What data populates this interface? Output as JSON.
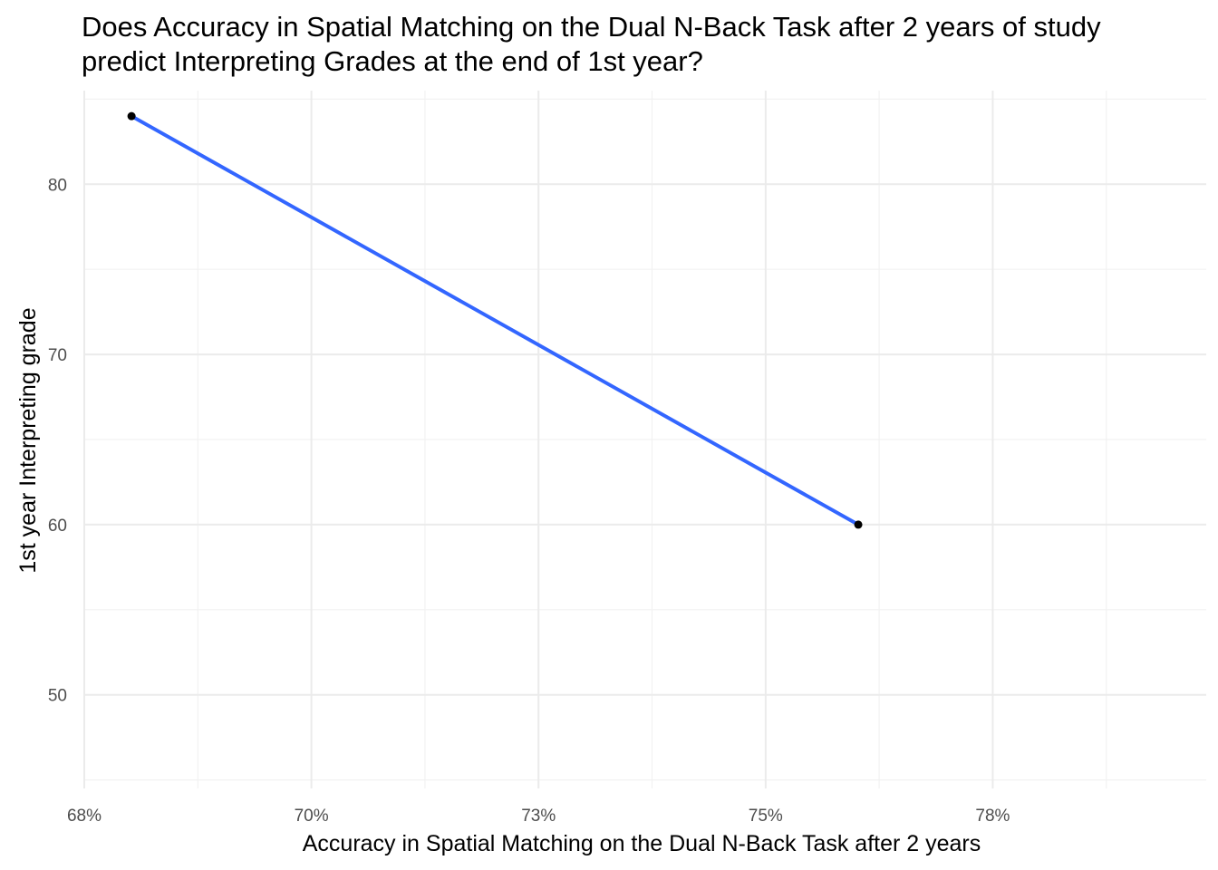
{
  "chart_data": {
    "type": "scatter",
    "title": [
      "Does Accuracy in Spatial Matching on the Dual N-Back Task after 2 years of study",
      "predict Interpreting Grades at the end of 1st year?"
    ],
    "xlabel": "Accuracy in Spatial Matching on the Dual N-Back Task after 2 years",
    "ylabel": "1st year Interpreting grade",
    "xlim": [
      0.675,
      0.7985
    ],
    "ylim": [
      44.5,
      85.5
    ],
    "x_ticks": [
      0.675,
      0.7,
      0.725,
      0.75,
      0.775
    ],
    "x_tick_labels": [
      "68%",
      "70%",
      "73%",
      "75%",
      "78%"
    ],
    "y_ticks": [
      50,
      60,
      70,
      80
    ],
    "y_tick_labels": [
      "50",
      "60",
      "70",
      "80"
    ],
    "grid": true,
    "points": [
      {
        "x": 0.6802,
        "y": 84
      },
      {
        "x": 0.7602,
        "y": 60
      }
    ],
    "fit_line": {
      "x": [
        0.6802,
        0.7602
      ],
      "y": [
        84,
        60
      ],
      "color": "#3366ff"
    },
    "point_color": "#000000"
  }
}
